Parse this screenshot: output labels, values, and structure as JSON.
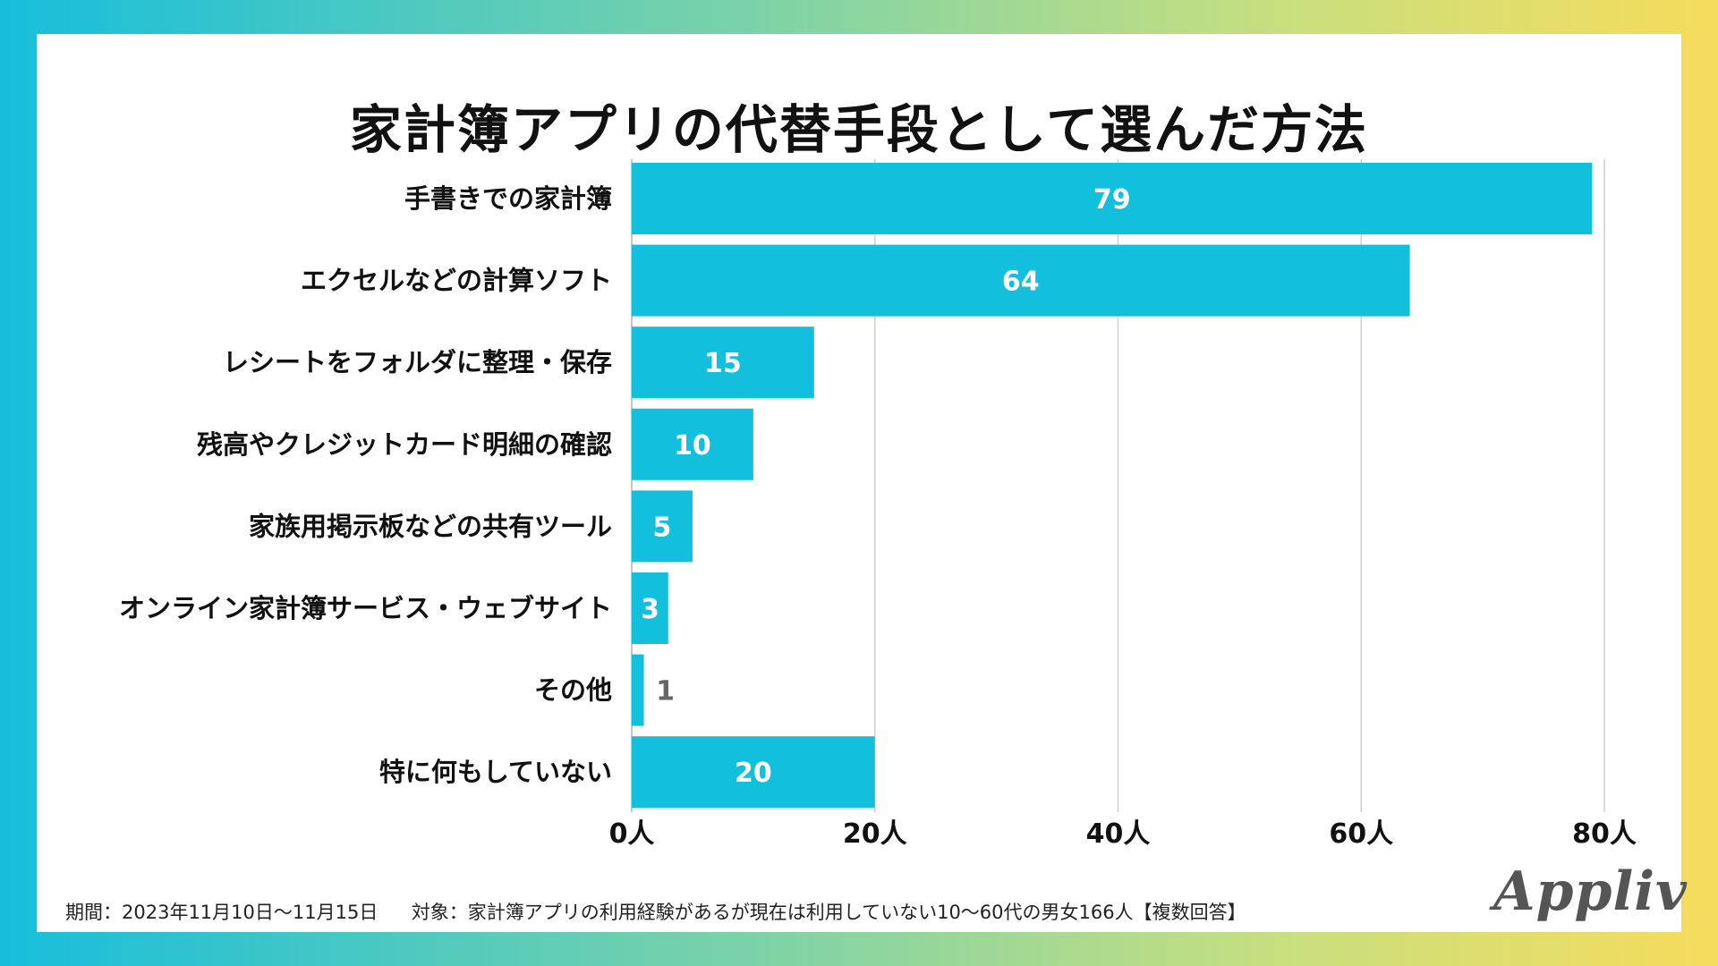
{
  "footer": {
    "period": "期間：2023年11月10日〜11月15日",
    "target": "対象：家計簿アプリの利用経験があるが現在は利用していない10〜60代の男女166人【複数回答】"
  },
  "brand": {
    "logo": "Appliv"
  },
  "colors": {
    "bar": "#12bfdd",
    "grid": "#cfcfcf",
    "label_in": "#ffffff",
    "label_out": "#666666",
    "text": "#111111"
  },
  "chart_data": {
    "type": "bar",
    "orientation": "horizontal",
    "title": "家計簿アプリの代替手段として選んだ方法",
    "categories": [
      "手書きでの家計簿",
      "エクセルなどの計算ソフト",
      "レシートをフォルダに整理・保存",
      "残高やクレジットカード明細の確認",
      "家族用掲示板などの共有ツール",
      "オンライン家計簿サービス・ウェブサイト",
      "その他",
      "特に何もしていない"
    ],
    "values": [
      79,
      64,
      15,
      10,
      5,
      3,
      1,
      20
    ],
    "xlim": [
      0,
      80
    ],
    "xticks": [
      0,
      20,
      40,
      60,
      80
    ],
    "tick_suffix": "人",
    "grid": true
  }
}
